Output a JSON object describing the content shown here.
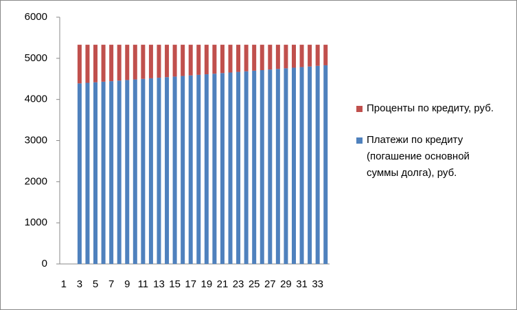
{
  "chart_data": {
    "type": "stacked_bar",
    "categories": [
      1,
      null,
      3,
      null,
      5,
      null,
      7,
      null,
      9,
      null,
      11,
      null,
      13,
      null,
      15,
      null,
      17,
      null,
      19,
      null,
      21,
      null,
      23,
      null,
      25,
      null,
      27,
      null,
      29,
      null,
      31,
      null,
      33,
      null
    ],
    "series": [
      {
        "name": "Платежи по кредиту (погашение основной суммы долга), руб.",
        "color": "#4f81bd",
        "values": [
          null,
          null,
          4390,
          4404,
          4417,
          4431,
          4444,
          4458,
          4472,
          4486,
          4500,
          4514,
          4528,
          4542,
          4556,
          4570,
          4584,
          4598,
          4612,
          4626,
          4641,
          4655,
          4670,
          4684,
          4699,
          4713,
          4728,
          4742,
          4757,
          4772,
          4787,
          4801,
          4816,
          4831
        ]
      },
      {
        "name": "Проценты по кредиту, руб.",
        "color": "#c0504d",
        "values": [
          null,
          null,
          940,
          926,
          913,
          899,
          886,
          872,
          858,
          844,
          830,
          816,
          802,
          788,
          774,
          760,
          746,
          732,
          718,
          704,
          689,
          675,
          660,
          646,
          631,
          617,
          602,
          588,
          573,
          558,
          543,
          529,
          514,
          499
        ]
      }
    ],
    "ylim": [
      0,
      6000
    ],
    "yticks": [
      0,
      1000,
      2000,
      3000,
      4000,
      5000,
      6000
    ],
    "grid": false,
    "legend": "right"
  }
}
